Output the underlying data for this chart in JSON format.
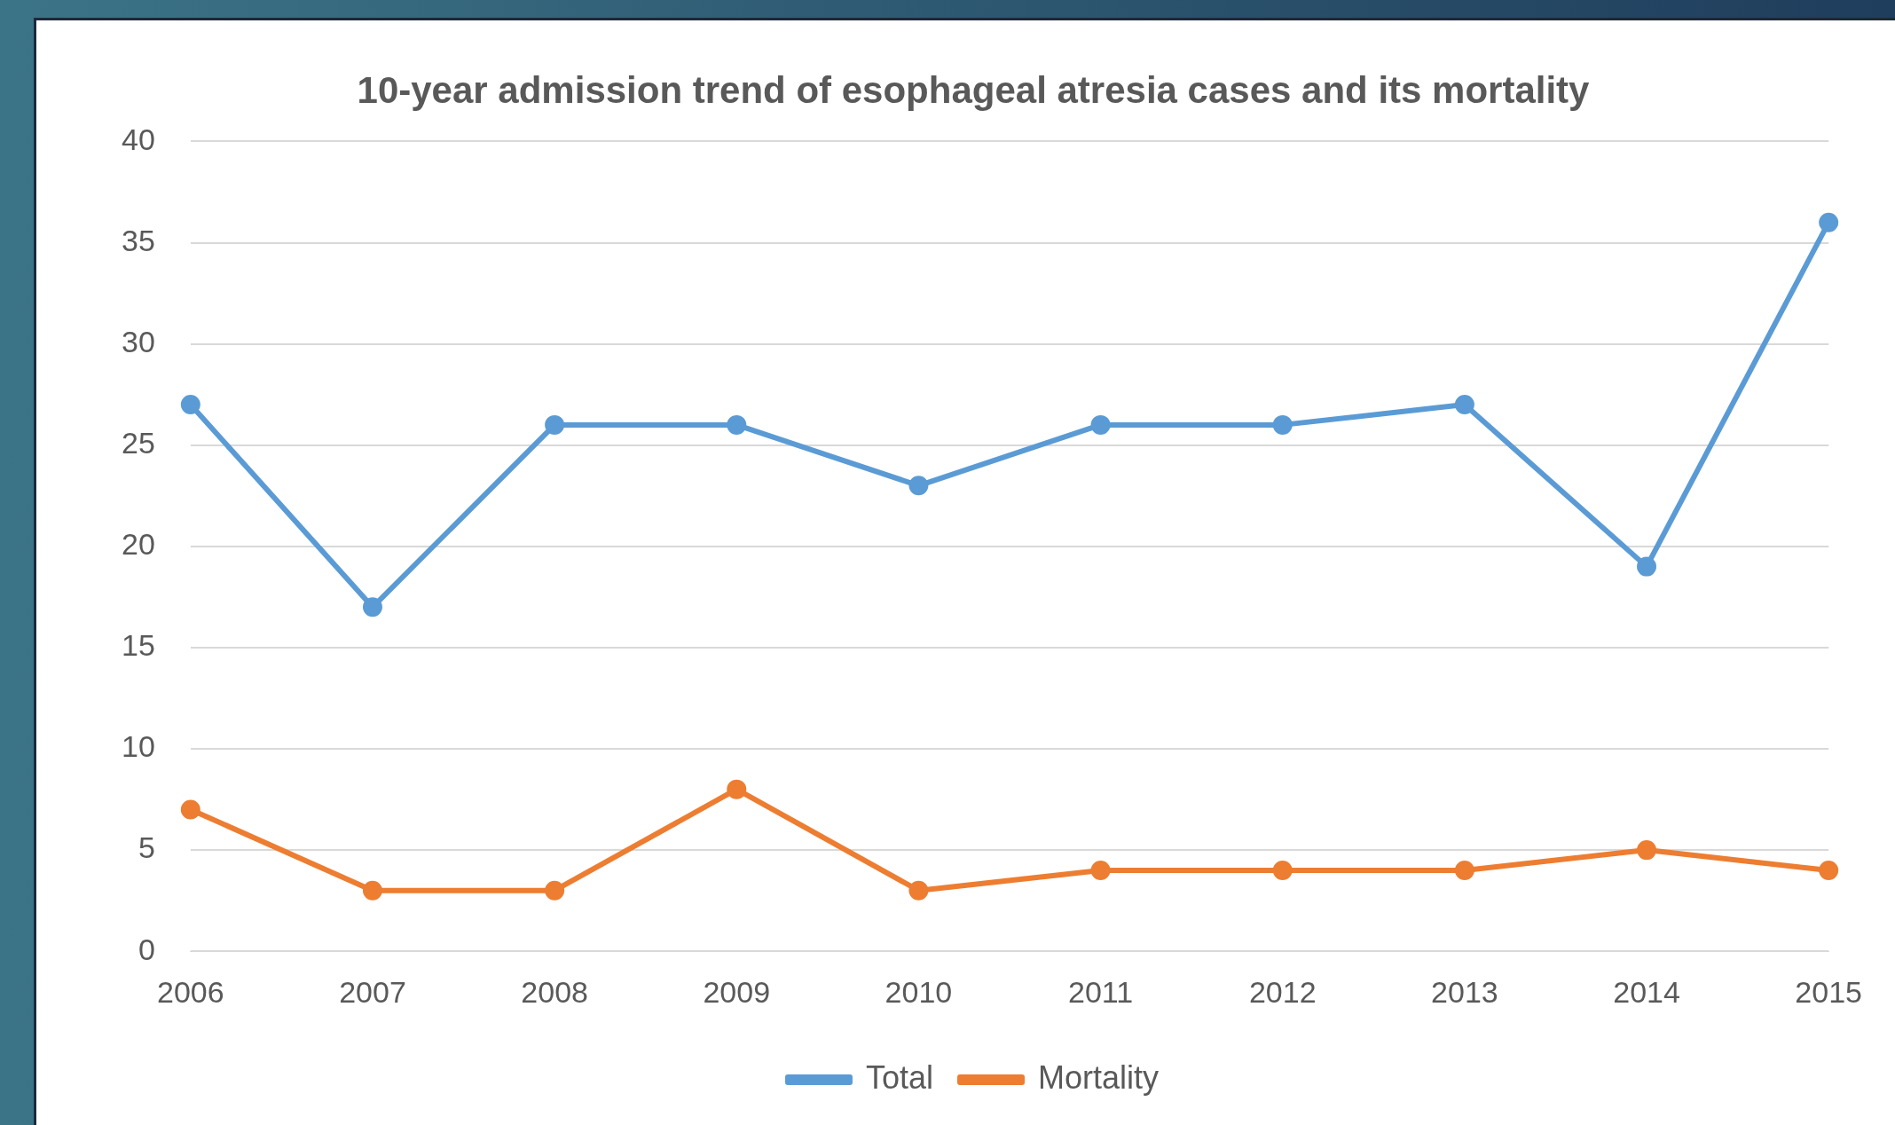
{
  "chart_data": {
    "type": "line",
    "title": "10-year admission trend of esophageal atresia cases and its mortality",
    "categories": [
      "2006",
      "2007",
      "2008",
      "2009",
      "2010",
      "2011",
      "2012",
      "2013",
      "2014",
      "2015"
    ],
    "series": [
      {
        "name": "Total",
        "color": "#5b9bd5",
        "values": [
          27,
          17,
          26,
          26,
          23,
          26,
          26,
          27,
          19,
          36
        ]
      },
      {
        "name": "Mortality",
        "color": "#ed7d31",
        "values": [
          7,
          3,
          3,
          8,
          3,
          4,
          4,
          4,
          5,
          4
        ]
      }
    ],
    "ylim": [
      0,
      40
    ],
    "yticks": [
      0,
      5,
      10,
      15,
      20,
      25,
      30,
      35,
      40
    ],
    "grid": "y",
    "legend": "bottom",
    "marker": "circle",
    "line_style": "solid"
  }
}
